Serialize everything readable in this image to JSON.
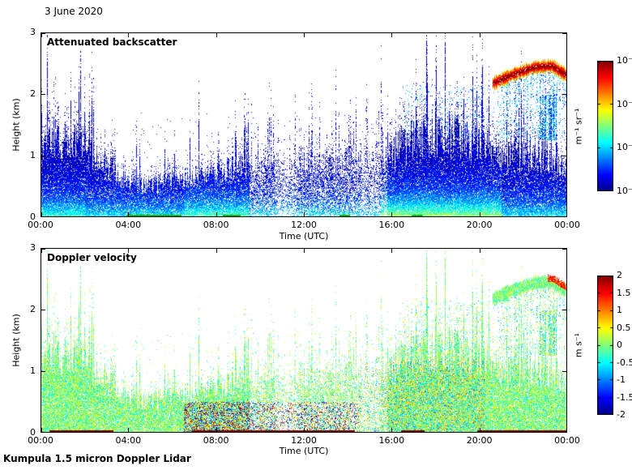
{
  "page": {
    "date_label": "3 June 2020",
    "footer": "Kumpula 1.5 micron Doppler Lidar"
  },
  "chart_data": [
    {
      "type": "heatmap",
      "title": "Attenuated backscatter",
      "xlabel": "Time (UTC)",
      "ylabel": "Height (km)",
      "x_ticks": [
        "00:00",
        "04:00",
        "08:00",
        "12:00",
        "16:00",
        "20:00",
        "00:00"
      ],
      "y_ticks": [
        "0",
        "1",
        "2",
        "3"
      ],
      "xlim_hours": [
        0,
        24
      ],
      "ylim_km": [
        0,
        3
      ],
      "colormap": "jet",
      "grid": false,
      "colorbar": {
        "unit": "m⁻¹ sr⁻¹",
        "scale": "log10",
        "ticks": [
          "10⁻⁴",
          "10⁻⁵",
          "10⁻⁶",
          "10⁻⁷"
        ],
        "min": 1e-07,
        "max": 0.0001,
        "position": "right"
      },
      "features": {
        "mixing_layer_height_km": {
          "hours": [
            0,
            1,
            2.5,
            4,
            5,
            6,
            7,
            7.5,
            8.5,
            9.5,
            10.5,
            11.5,
            12.5,
            13.5,
            14.5,
            15.5,
            16.5,
            17.5,
            18.5,
            19.5,
            20.5,
            21.5,
            22.5,
            23.5,
            24
          ],
          "height_km": [
            1.35,
            1.25,
            1.0,
            0.55,
            0.5,
            0.6,
            0.7,
            0.65,
            0.8,
            0.75,
            0.85,
            0.8,
            0.95,
            0.9,
            0.85,
            1.0,
            1.15,
            1.3,
            1.35,
            1.25,
            1.1,
            1.05,
            1.0,
            0.95,
            0.9
          ]
        },
        "cloud_band": {
          "hours": [
            20.6,
            21.5,
            22.5,
            23.3,
            24
          ],
          "center_km": [
            2.18,
            2.32,
            2.44,
            2.46,
            2.3
          ],
          "thickness_km": 0.15,
          "peak_value": 0.0001
        },
        "aloft_scatter": {
          "start_hour": 16.5,
          "end_hour": 24,
          "min_km": 1.25,
          "max_km": 2.15
        },
        "surface_flags_hours": [
          [
            3.9,
            6.4
          ],
          [
            8.3,
            9.1
          ],
          [
            13.6,
            14.1
          ],
          [
            16.9,
            17.4
          ]
        ],
        "surface_flag_color": "#00b400"
      }
    },
    {
      "type": "heatmap",
      "title": "Doppler velocity",
      "xlabel": "Time (UTC)",
      "ylabel": "Height (km)",
      "x_ticks": [
        "00:00",
        "04:00",
        "08:00",
        "12:00",
        "16:00",
        "20:00",
        "00:00"
      ],
      "y_ticks": [
        "0",
        "1",
        "2",
        "3"
      ],
      "xlim_hours": [
        0,
        24
      ],
      "ylim_km": [
        0,
        3
      ],
      "colormap": "jet",
      "grid": false,
      "colorbar": {
        "unit": "m s⁻¹",
        "scale": "linear",
        "ticks": [
          "2",
          "1.5",
          "1",
          "0.5",
          "0",
          "-0.5",
          "-1",
          "-1.5",
          "-2"
        ],
        "min": -2,
        "max": 2,
        "position": "right"
      },
      "features": {
        "turbulent_surface_layer": {
          "start_hour": 6.5,
          "end_hour": 14.5,
          "top_km": 0.5
        },
        "surface_flags_hours": [
          [
            0.4,
            3.3
          ],
          [
            6.9,
            14.3
          ],
          [
            16.4,
            17.5
          ],
          [
            19.9,
            24
          ]
        ],
        "surface_flag_color": "#780000"
      }
    }
  ]
}
